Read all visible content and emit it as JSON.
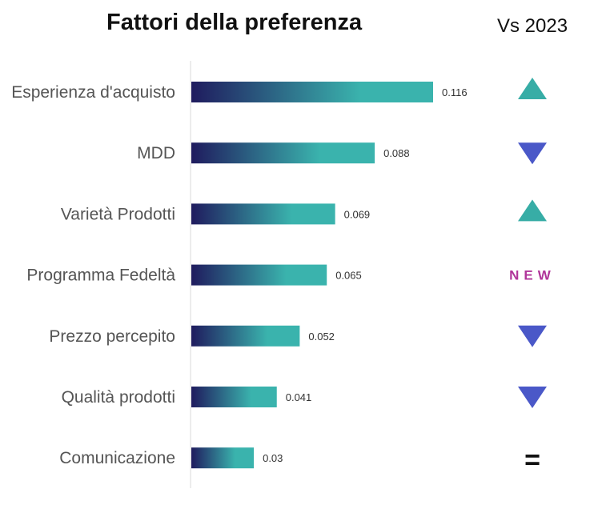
{
  "title": "Fattori della preferenza",
  "comparison_title": "Vs 2023",
  "colors": {
    "bar_start": "#1f1b5e",
    "bar_end": "#3ab3ad",
    "up": "#37ada6",
    "down": "#4a58c8",
    "new": "#b0359a",
    "axis": "#d9d9d9"
  },
  "chart_data": {
    "type": "bar",
    "orientation": "horizontal",
    "title": "Fattori della preferenza",
    "categories": [
      "Esperienza d'acquisto",
      "MDD",
      "Varietà Prodotti",
      "Programma Fedeltà",
      "Prezzo percepito",
      "Qualità prodotti",
      "Comunicazione"
    ],
    "values": [
      0.116,
      0.088,
      0.069,
      0.065,
      0.052,
      0.041,
      0.03
    ],
    "value_labels": [
      "0.116",
      "0.088",
      "0.069",
      "0.065",
      "0.052",
      "0.041",
      "0.03"
    ],
    "xlim": [
      0,
      0.13
    ],
    "grid": false,
    "legend": "none",
    "trend": [
      {
        "type": "up-icon"
      },
      {
        "type": "down-icon"
      },
      {
        "type": "up-icon"
      },
      {
        "type": "text",
        "text": "NEW"
      },
      {
        "type": "down-icon"
      },
      {
        "type": "down-icon"
      },
      {
        "type": "text",
        "text": "="
      }
    ]
  }
}
